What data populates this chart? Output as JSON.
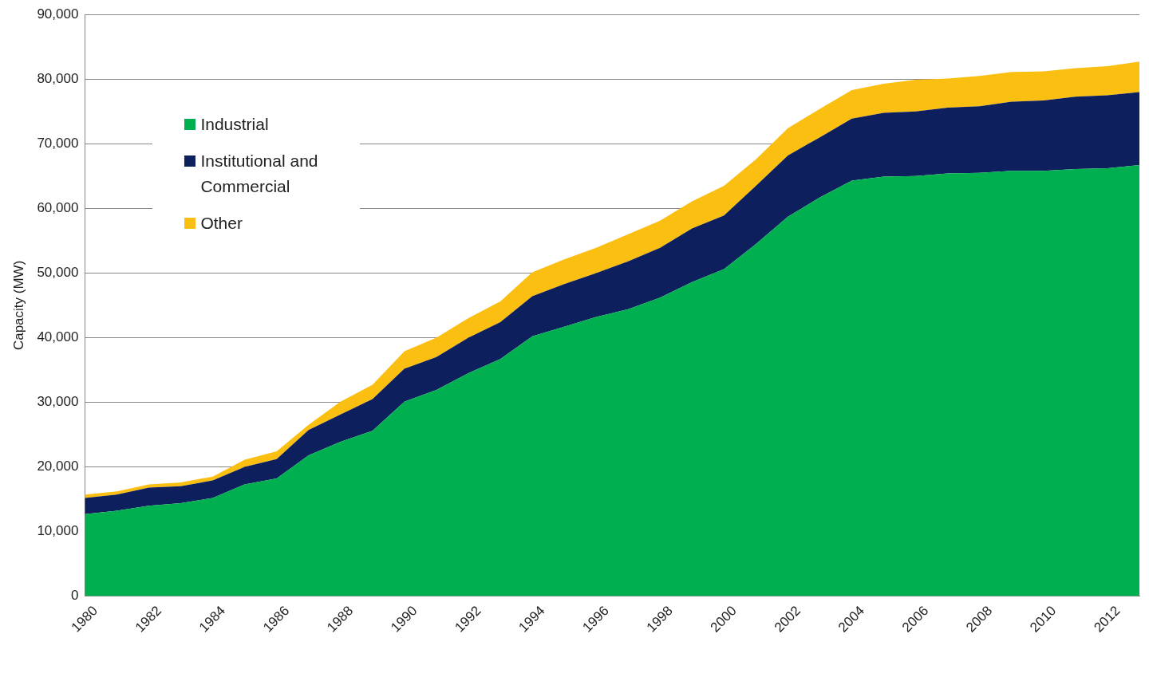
{
  "chart_data": {
    "type": "area",
    "stacked": true,
    "ylabel": "Capacity (MW)",
    "x": [
      1980,
      1981,
      1982,
      1983,
      1984,
      1985,
      1986,
      1987,
      1988,
      1989,
      1990,
      1991,
      1992,
      1993,
      1994,
      1995,
      1996,
      1997,
      1998,
      1999,
      2000,
      2001,
      2002,
      2003,
      2004,
      2005,
      2006,
      2007,
      2008,
      2009,
      2010,
      2011,
      2012,
      2013
    ],
    "series": [
      {
        "name": "Industrial",
        "color": "#00b050",
        "values": [
          12700,
          13200,
          14000,
          14400,
          15200,
          17300,
          18200,
          21800,
          23900,
          25600,
          30100,
          31900,
          34500,
          36700,
          40200,
          41700,
          43200,
          44400,
          46200,
          48600,
          50600,
          54500,
          58700,
          61700,
          64300,
          64900,
          65000,
          65400,
          65500,
          65800,
          65800,
          66100,
          66200,
          66700
        ]
      },
      {
        "name": "Institutional and Commercial",
        "color": "#0d1f5c",
        "values": [
          2500,
          2500,
          2800,
          2600,
          2700,
          2700,
          3000,
          3900,
          4200,
          4900,
          5100,
          5100,
          5500,
          5700,
          6200,
          6600,
          6800,
          7400,
          7700,
          8300,
          8300,
          9000,
          9500,
          9300,
          9600,
          9900,
          10000,
          10200,
          10300,
          10700,
          10900,
          11200,
          11300,
          11300
        ]
      },
      {
        "name": "Other",
        "color": "#fbbf12",
        "values": [
          500,
          500,
          500,
          600,
          600,
          1100,
          1200,
          800,
          2000,
          2200,
          2700,
          3000,
          3000,
          3200,
          3700,
          3800,
          3900,
          4200,
          4200,
          4200,
          4600,
          4100,
          4200,
          4400,
          4400,
          4500,
          4900,
          4500,
          4700,
          4600,
          4500,
          4400,
          4500,
          4700
        ]
      }
    ],
    "xlim": [
      1980,
      2013
    ],
    "xticks": [
      1980,
      1982,
      1984,
      1986,
      1988,
      1990,
      1992,
      1994,
      1996,
      1998,
      2000,
      2002,
      2004,
      2006,
      2008,
      2010,
      2012
    ],
    "ylim": [
      0,
      90000
    ],
    "yticks": [
      {
        "value": 0,
        "label": "0"
      },
      {
        "value": 10000,
        "label": "10,000"
      },
      {
        "value": 20000,
        "label": "20,000"
      },
      {
        "value": 30000,
        "label": "30,000"
      },
      {
        "value": 40000,
        "label": "40,000"
      },
      {
        "value": 50000,
        "label": "50,000"
      },
      {
        "value": 60000,
        "label": "60,000"
      },
      {
        "value": 70000,
        "label": "70,000"
      },
      {
        "value": 80000,
        "label": "80,000"
      },
      {
        "value": 90000,
        "label": "90,000"
      }
    ],
    "grid": "y",
    "legend": "top left"
  }
}
